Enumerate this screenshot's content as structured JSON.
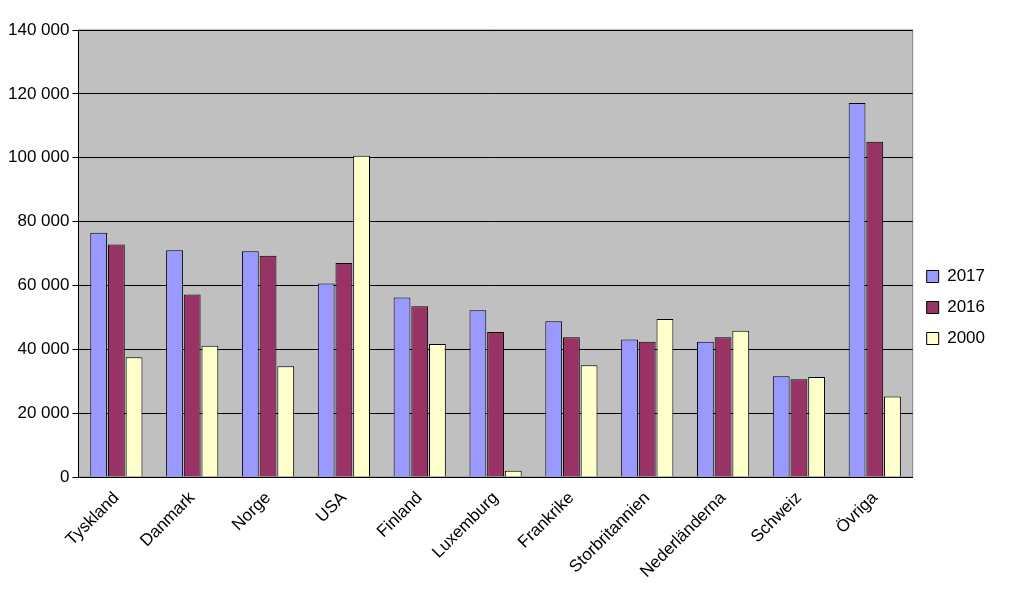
{
  "chart_data": {
    "type": "bar",
    "categories": [
      "Tyskland",
      "Danmark",
      "Norge",
      "USA",
      "Finland",
      "Luxemburg",
      "Frankrike",
      "Storbritannien",
      "Nederländerna",
      "Schweiz",
      "Övriga"
    ],
    "series": [
      {
        "name": "2017",
        "color": "#9999ff",
        "values": [
          76500,
          71000,
          70700,
          60600,
          56200,
          52200,
          48800,
          43100,
          42400,
          31600,
          117100
        ]
      },
      {
        "name": "2016",
        "color": "#993366",
        "values": [
          72800,
          57200,
          69300,
          67000,
          53500,
          45400,
          43800,
          42400,
          43800,
          30600,
          105000
        ]
      },
      {
        "name": "2000",
        "color": "#ffffcc",
        "values": [
          37500,
          41100,
          34700,
          100600,
          41700,
          2000,
          35000,
          49500,
          45800,
          31300,
          25200
        ]
      }
    ],
    "ylim": [
      0,
      140000
    ],
    "yticks": [
      0,
      {
        "value": 20000,
        "label": "20 000"
      },
      {
        "value": 40000,
        "label": "40 000"
      },
      {
        "value": 60000,
        "label": "60 000"
      },
      {
        "value": 80000,
        "label": "80 000"
      },
      {
        "value": 100000,
        "label": "100 000"
      },
      {
        "value": 120000,
        "label": "120 000"
      },
      {
        "value": 140000,
        "label": "140 000"
      }
    ],
    "grid": true,
    "legend": "right"
  }
}
